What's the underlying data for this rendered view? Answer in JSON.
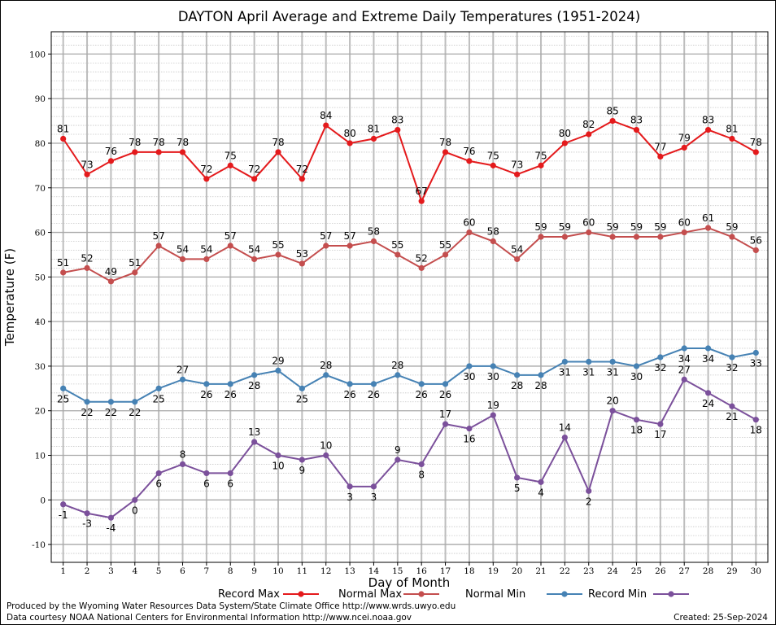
{
  "chart_data": {
    "type": "line",
    "title": "DAYTON April Average and Extreme Daily Temperatures (1951-2024)",
    "xlabel": "Day of Month",
    "ylabel": "Temperature (F)",
    "x": [
      1,
      2,
      3,
      4,
      5,
      6,
      7,
      8,
      9,
      10,
      11,
      12,
      13,
      14,
      15,
      16,
      17,
      18,
      19,
      20,
      21,
      22,
      23,
      24,
      25,
      26,
      27,
      28,
      29,
      30
    ],
    "xlim": [
      0.5,
      30.5
    ],
    "ylim": [
      -14,
      105
    ],
    "yticks": [
      -10,
      0,
      10,
      20,
      30,
      40,
      50,
      60,
      70,
      80,
      90,
      100
    ],
    "grid": true,
    "legend_position": "bottom",
    "series": [
      {
        "name": "Record Max",
        "color": "#e41a1c",
        "values": [
          81,
          73,
          76,
          78,
          78,
          78,
          72,
          75,
          72,
          78,
          72,
          84,
          80,
          81,
          83,
          67,
          78,
          76,
          75,
          73,
          75,
          80,
          82,
          85,
          83,
          77,
          79,
          83,
          81,
          78
        ]
      },
      {
        "name": "Normal Max",
        "color": "#c44e4e",
        "values": [
          51,
          52,
          49,
          51,
          57,
          54,
          54,
          57,
          54,
          55,
          53,
          57,
          57,
          58,
          55,
          52,
          55,
          60,
          58,
          54,
          59,
          59,
          60,
          59,
          59,
          59,
          60,
          61,
          59,
          56
        ]
      },
      {
        "name": "Normal Min",
        "color": "#4682b4",
        "values": [
          25,
          22,
          22,
          22,
          25,
          27,
          26,
          26,
          28,
          29,
          25,
          28,
          26,
          26,
          28,
          26,
          26,
          30,
          30,
          28,
          28,
          31,
          31,
          31,
          30,
          32,
          34,
          34,
          32,
          33
        ]
      },
      {
        "name": "Record Min",
        "color": "#7b509b",
        "values": [
          -1,
          -3,
          -4,
          0,
          6,
          8,
          6,
          6,
          13,
          10,
          9,
          10,
          3,
          3,
          9,
          8,
          17,
          16,
          19,
          5,
          4,
          14,
          2,
          20,
          18,
          17,
          27,
          24,
          21,
          18
        ]
      }
    ]
  },
  "footer": {
    "produced": "Produced by the Wyoming Water Resources Data System/State Climate Office http://www.wrds.uwyo.edu",
    "courtesy": "Data courtesy NOAA National Centers for Environmental Information http://www.ncei.noaa.gov",
    "created": "Created:  25-Sep-2024"
  }
}
